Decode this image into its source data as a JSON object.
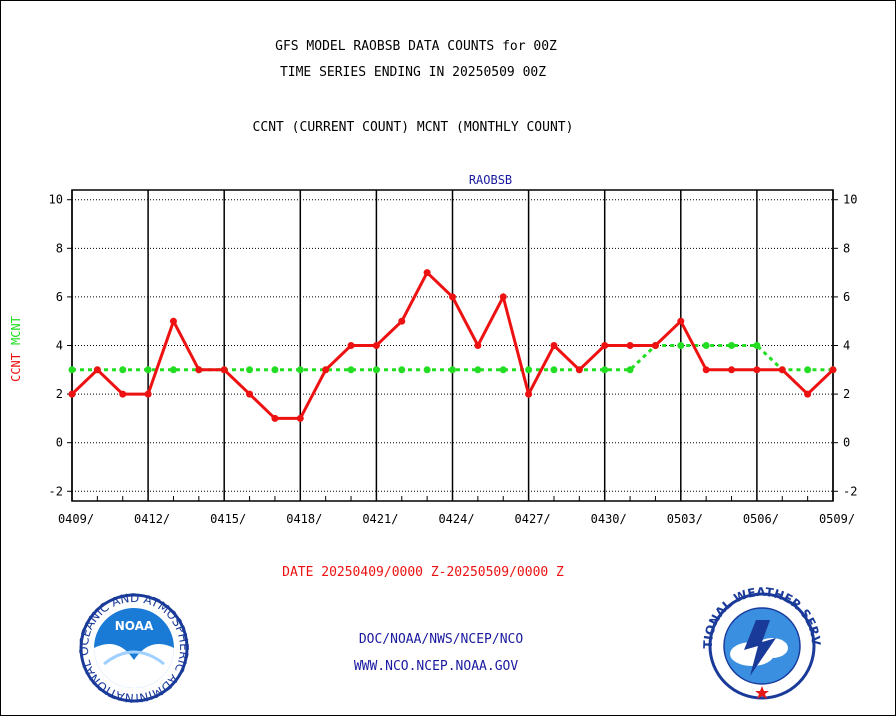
{
  "header": {
    "title_line1": "GFS MODEL RAOBSB DATA COUNTS for 00Z",
    "title_line2": "TIME SERIES ENDING IN 20250509 00Z",
    "subtitle": "CCNT (CURRENT COUNT) MCNT (MONTHLY COUNT)"
  },
  "footer": {
    "date_range": "DATE 20250409/0000 Z-20250509/0000 Z",
    "org_path": "DOC/NOAA/NWS/NCEP/NCO",
    "website": "WWW.NCO.NCEP.NOAA.GOV"
  },
  "logos": {
    "noaa_text": "NOAA",
    "noaa_ring": "NATIONAL OCEANIC AND ATMOSPHERIC ADMINISTRATION · U.S. DEPARTMENT OF COMMERCE ·",
    "nws_ring": "NATIONAL WEATHER SERVICE"
  },
  "colors": {
    "ccnt": "#ee1111",
    "mcnt": "#22dd22",
    "plot_label": "#1a1aa0",
    "date_text": "#ee1111",
    "link_text": "#1a1aa0"
  },
  "chart_data": {
    "type": "line",
    "title": "RAOBSB",
    "ylabel_series": [
      "CCNT",
      "MCNT"
    ],
    "ylim": [
      -2.4,
      10.4
    ],
    "yticks": [
      -2,
      0,
      2,
      4,
      6,
      8,
      10
    ],
    "x_tick_labels": [
      "0409/",
      "0412/",
      "0415/",
      "0418/",
      "0421/",
      "0424/",
      "0427/",
      "0430/",
      "0503/",
      "0506/",
      "0509/"
    ],
    "x_dates": [
      "0409",
      "0410",
      "0411",
      "0412",
      "0413",
      "0414",
      "0415",
      "0416",
      "0417",
      "0418",
      "0419",
      "0420",
      "0421",
      "0422",
      "0423",
      "0424",
      "0425",
      "0426",
      "0427",
      "0428",
      "0429",
      "0430",
      "0501",
      "0502",
      "0503",
      "0504",
      "0505",
      "0506",
      "0507",
      "0508",
      "0509"
    ],
    "grid": true,
    "series": [
      {
        "name": "CCNT",
        "style": "solid",
        "values": [
          2,
          3,
          2,
          2,
          5,
          3,
          3,
          2,
          1,
          1,
          3,
          4,
          4,
          5,
          7,
          6,
          4,
          6,
          2,
          4,
          3,
          4,
          4,
          4,
          5,
          3,
          3,
          3,
          3,
          2,
          3
        ]
      },
      {
        "name": "MCNT",
        "style": "dotted",
        "values": [
          3,
          3,
          3,
          3,
          3,
          3,
          3,
          3,
          3,
          3,
          3,
          3,
          3,
          3,
          3,
          3,
          3,
          3,
          3,
          3,
          3,
          3,
          3,
          4,
          4,
          4,
          4,
          4,
          3,
          3,
          3
        ]
      }
    ]
  }
}
